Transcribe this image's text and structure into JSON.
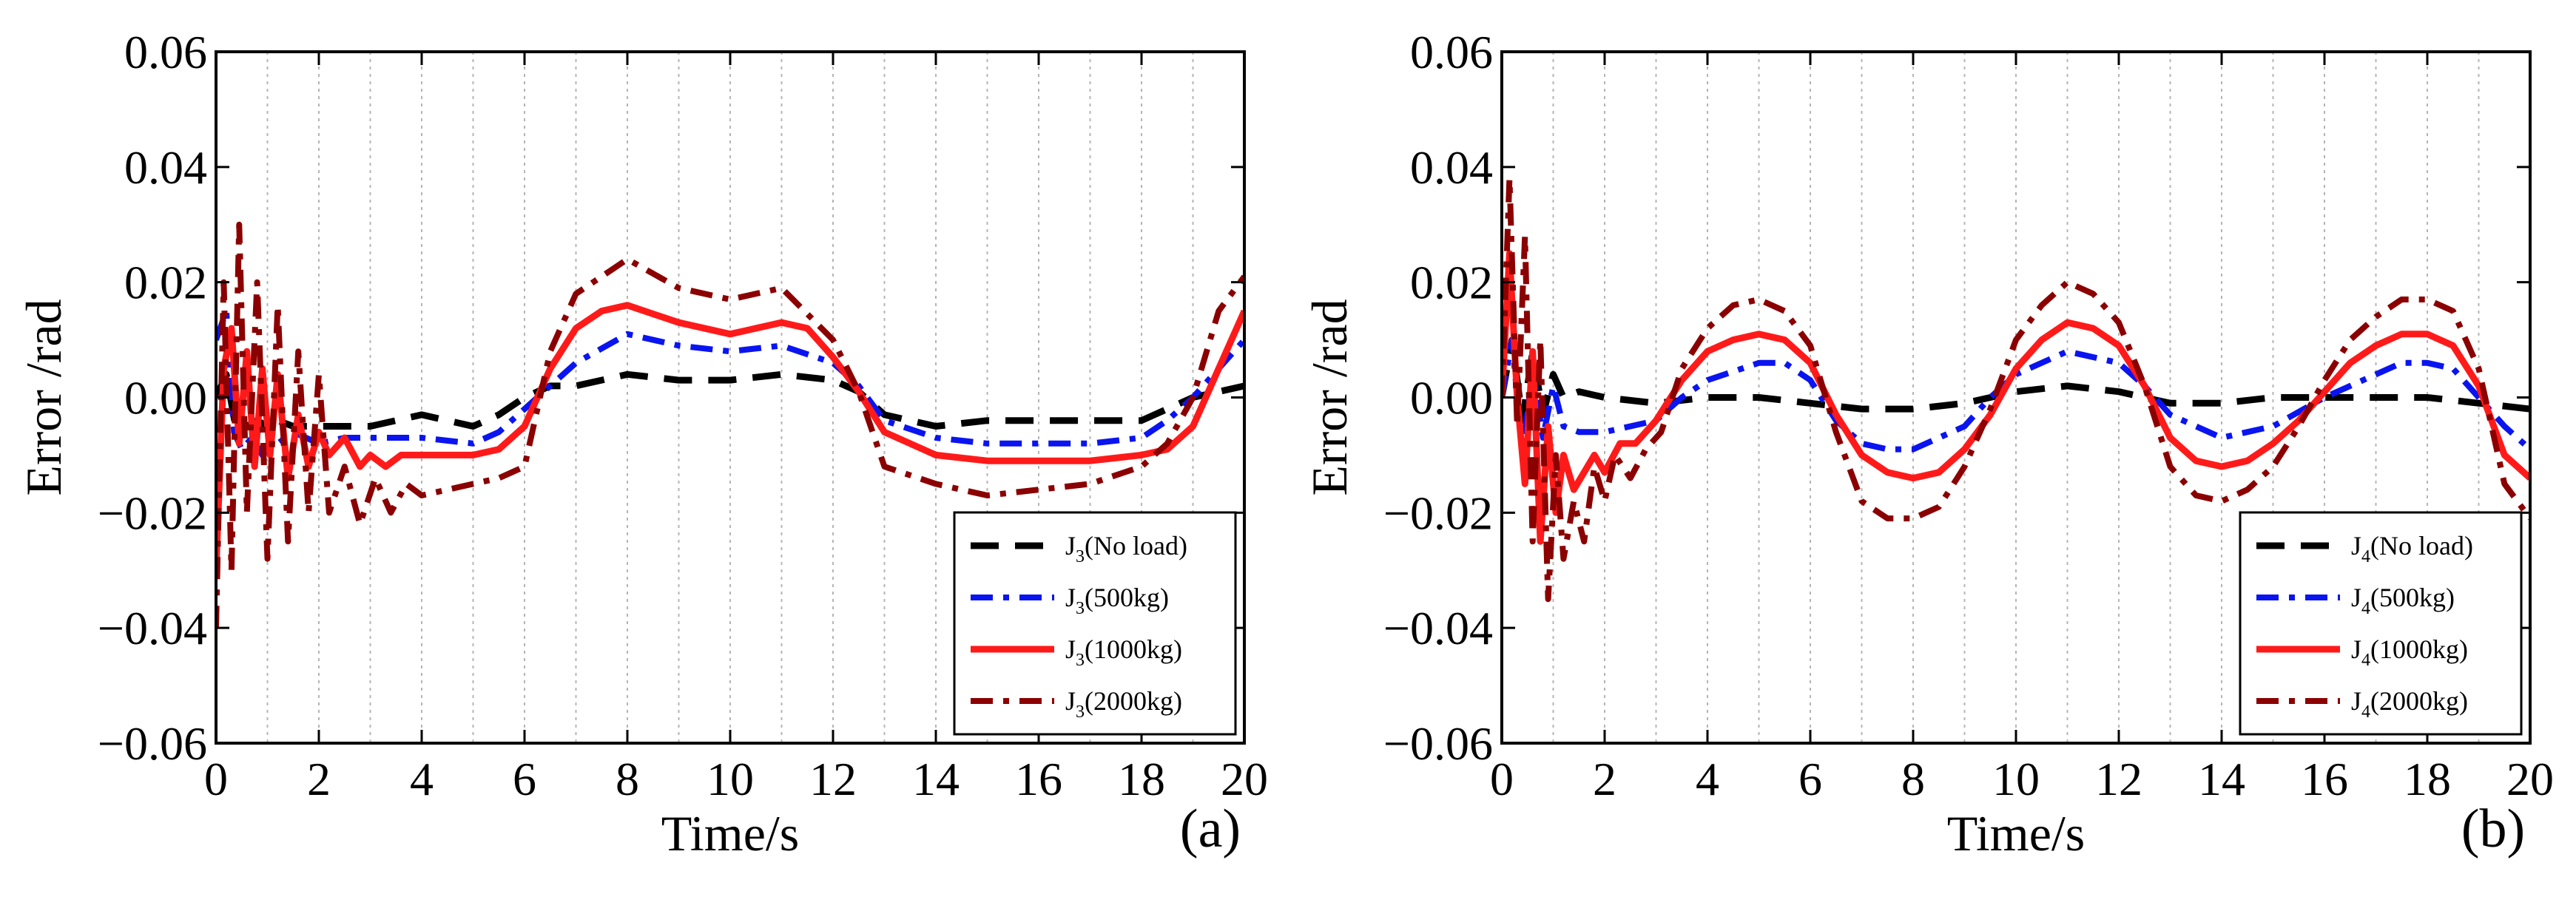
{
  "figure": {
    "colors": {
      "no_load": "#000000",
      "kg500": "#0a14f0",
      "kg1000": "#ff1a1a",
      "kg2000": "#8b0000",
      "grid": "#b4b4b4"
    }
  },
  "chart_data": [
    {
      "type": "line",
      "panel_label": "(a)",
      "xlabel": "Time/s",
      "ylabel": "Error /rad",
      "xlim": [
        0,
        20
      ],
      "ylim": [
        -0.06,
        0.06
      ],
      "xticks": [
        "0",
        "2",
        "4",
        "6",
        "8",
        "10",
        "12",
        "14",
        "16",
        "18",
        "20"
      ],
      "yticks": [
        "0.06",
        "0.04",
        "0.02",
        "0.00",
        "−0.02",
        "−0.04",
        "−0.06"
      ],
      "grid": "vertical dotted lines every 1 s",
      "legend": {
        "placement": "bottom-right"
      },
      "series": [
        {
          "name": "J3(No load)",
          "legend_main": "J",
          "legend_sub": "3",
          "legend_rest": "(No load)",
          "color": "#000000",
          "style": "dashed",
          "x": [
            0,
            0.2,
            0.4,
            0.6,
            0.8,
            1.0,
            1.2,
            1.5,
            2,
            3,
            4,
            5,
            5.5,
            6,
            6.5,
            7,
            8,
            9,
            10,
            11,
            12,
            12.5,
            13,
            14,
            15,
            16,
            17,
            18,
            18.5,
            19,
            20
          ],
          "y": [
            0,
            0.004,
            -0.006,
            -0.005,
            -0.004,
            -0.005,
            -0.004,
            -0.005,
            -0.005,
            -0.005,
            -0.003,
            -0.005,
            -0.003,
            0.0,
            0.002,
            0.002,
            0.004,
            0.003,
            0.003,
            0.004,
            0.003,
            0.001,
            -0.003,
            -0.005,
            -0.004,
            -0.004,
            -0.004,
            -0.004,
            -0.002,
            0.0,
            0.002
          ]
        },
        {
          "name": "J3(500kg)",
          "legend_main": "J",
          "legend_sub": "3",
          "legend_rest": "(500kg)",
          "color": "#0a14f0",
          "style": "dashdot",
          "x": [
            0,
            0.2,
            0.35,
            0.5,
            0.7,
            0.9,
            1.2,
            1.5,
            2,
            2.5,
            3,
            4,
            5,
            5.5,
            6,
            6.5,
            7,
            8,
            9,
            10,
            11,
            12,
            12.5,
            13,
            14,
            15,
            16,
            17,
            18,
            18.5,
            19,
            20
          ],
          "y": [
            0.01,
            0.015,
            -0.006,
            -0.009,
            -0.007,
            -0.01,
            -0.008,
            -0.006,
            -0.008,
            -0.007,
            -0.007,
            -0.007,
            -0.008,
            -0.006,
            -0.002,
            0.002,
            0.006,
            0.011,
            0.009,
            0.008,
            0.009,
            0.006,
            0.002,
            -0.004,
            -0.007,
            -0.008,
            -0.008,
            -0.008,
            -0.007,
            -0.004,
            0.0,
            0.01
          ]
        },
        {
          "name": "J3(1000kg)",
          "legend_main": "J",
          "legend_sub": "3",
          "legend_rest": "(1000kg)",
          "color": "#ff1a1a",
          "style": "solid",
          "x": [
            0,
            0.15,
            0.3,
            0.45,
            0.6,
            0.75,
            0.9,
            1.05,
            1.2,
            1.4,
            1.6,
            1.8,
            2,
            2.2,
            2.5,
            2.8,
            3,
            3.3,
            3.6,
            4,
            5,
            5.5,
            6,
            6.5,
            7,
            7.5,
            8,
            9,
            10,
            11,
            11.5,
            12,
            12.5,
            13,
            14,
            15,
            16,
            17,
            18,
            18.5,
            19,
            19.5,
            20
          ],
          "y": [
            -0.03,
            0.005,
            0.012,
            -0.008,
            0.008,
            -0.012,
            0.005,
            -0.01,
            0.004,
            -0.014,
            -0.003,
            -0.012,
            -0.006,
            -0.01,
            -0.007,
            -0.012,
            -0.01,
            -0.012,
            -0.01,
            -0.01,
            -0.01,
            -0.009,
            -0.005,
            0.005,
            0.012,
            0.015,
            0.016,
            0.013,
            0.011,
            0.013,
            0.012,
            0.007,
            0.001,
            -0.006,
            -0.01,
            -0.011,
            -0.011,
            -0.011,
            -0.01,
            -0.009,
            -0.005,
            0.005,
            0.015
          ]
        },
        {
          "name": "J3(2000kg)",
          "legend_main": "J",
          "legend_sub": "3",
          "legend_rest": "(2000kg)",
          "color": "#8b0000",
          "style": "dashdot",
          "x": [
            0,
            0.15,
            0.3,
            0.45,
            0.6,
            0.8,
            1.0,
            1.2,
            1.4,
            1.6,
            1.8,
            2.0,
            2.2,
            2.5,
            2.8,
            3.1,
            3.4,
            3.7,
            4,
            5,
            5.5,
            6,
            6.5,
            7,
            7.5,
            8,
            9,
            10,
            11,
            12,
            12.5,
            13,
            14,
            15,
            16,
            17,
            18,
            18.5,
            19,
            19.5,
            20
          ],
          "y": [
            -0.04,
            0.02,
            -0.03,
            0.03,
            -0.02,
            0.02,
            -0.028,
            0.016,
            -0.025,
            0.008,
            -0.02,
            0.004,
            -0.02,
            -0.012,
            -0.022,
            -0.014,
            -0.02,
            -0.015,
            -0.017,
            -0.015,
            -0.014,
            -0.012,
            0.008,
            0.018,
            0.021,
            0.024,
            0.019,
            0.017,
            0.019,
            0.01,
            0.001,
            -0.012,
            -0.015,
            -0.017,
            -0.016,
            -0.015,
            -0.012,
            -0.008,
            0.0,
            0.015,
            0.021
          ]
        }
      ]
    },
    {
      "type": "line",
      "panel_label": "(b)",
      "xlabel": "Time/s",
      "ylabel": "Error /rad",
      "xlim": [
        0,
        20
      ],
      "ylim": [
        -0.06,
        0.06
      ],
      "xticks": [
        "0",
        "2",
        "4",
        "6",
        "8",
        "10",
        "12",
        "14",
        "16",
        "18",
        "20"
      ],
      "yticks": [
        "0.06",
        "0.04",
        "0.02",
        "0.00",
        "−0.02",
        "−0.04",
        "−0.06"
      ],
      "grid": "vertical dotted lines every 1 s",
      "legend": {
        "placement": "bottom-right"
      },
      "series": [
        {
          "name": "J4(No load)",
          "legend_main": "J",
          "legend_sub": "4",
          "legend_rest": "(No load)",
          "color": "#000000",
          "style": "dashed",
          "x": [
            0,
            0.2,
            0.4,
            0.6,
            0.8,
            1.0,
            1.2,
            1.5,
            2,
            3,
            4,
            5,
            6,
            7,
            8,
            9,
            10,
            11,
            12,
            13,
            14,
            15,
            16,
            17,
            18,
            19,
            20
          ],
          "y": [
            0.0,
            0.01,
            -0.004,
            0.008,
            -0.003,
            0.004,
            0.0,
            0.001,
            0.0,
            -0.001,
            0.0,
            0.0,
            -0.001,
            -0.002,
            -0.002,
            -0.001,
            0.001,
            0.002,
            0.001,
            -0.001,
            -0.001,
            0.0,
            0.0,
            0.0,
            0.0,
            -0.001,
            -0.002
          ]
        },
        {
          "name": "J4(500kg)",
          "legend_main": "J",
          "legend_sub": "4",
          "legend_rest": "(500kg)",
          "color": "#0a14f0",
          "style": "dashdot",
          "x": [
            0,
            0.2,
            0.4,
            0.6,
            0.8,
            1.0,
            1.2,
            1.5,
            2,
            2.5,
            3,
            3.5,
            4,
            5,
            5.5,
            6,
            6.5,
            7,
            7.5,
            8,
            9,
            9.5,
            10,
            11,
            12,
            12.5,
            13,
            14,
            15,
            16,
            17,
            17.5,
            18,
            18.5,
            19,
            19.5,
            20
          ],
          "y": [
            0.0,
            0.01,
            -0.01,
            0.005,
            -0.007,
            0.002,
            -0.005,
            -0.006,
            -0.006,
            -0.005,
            -0.004,
            0.0,
            0.003,
            0.006,
            0.006,
            0.003,
            -0.004,
            -0.008,
            -0.009,
            -0.009,
            -0.005,
            0.0,
            0.004,
            0.008,
            0.006,
            0.002,
            -0.003,
            -0.007,
            -0.005,
            0.0,
            0.004,
            0.006,
            0.006,
            0.005,
            0.0,
            -0.005,
            -0.009
          ]
        },
        {
          "name": "J4(1000kg)",
          "legend_main": "J",
          "legend_sub": "4",
          "legend_rest": "(1000kg)",
          "color": "#ff1a1a",
          "style": "solid",
          "x": [
            0,
            0.15,
            0.3,
            0.45,
            0.6,
            0.75,
            0.9,
            1.05,
            1.2,
            1.4,
            1.6,
            1.8,
            2,
            2.3,
            2.6,
            3,
            3.5,
            4,
            4.5,
            5,
            5.5,
            6,
            6.5,
            7,
            7.5,
            8,
            8.5,
            9,
            9.5,
            10,
            10.5,
            11,
            11.5,
            12,
            12.5,
            13,
            13.5,
            14,
            14.5,
            15,
            15.5,
            16,
            16.5,
            17,
            17.5,
            18,
            18.5,
            19,
            19.5,
            20
          ],
          "y": [
            0.0,
            0.025,
            0.0,
            -0.015,
            0.008,
            -0.025,
            -0.005,
            -0.02,
            -0.01,
            -0.016,
            -0.013,
            -0.01,
            -0.013,
            -0.008,
            -0.008,
            -0.004,
            0.003,
            0.008,
            0.01,
            0.011,
            0.01,
            0.006,
            -0.003,
            -0.01,
            -0.013,
            -0.014,
            -0.013,
            -0.009,
            -0.003,
            0.005,
            0.01,
            0.013,
            0.012,
            0.009,
            0.002,
            -0.007,
            -0.011,
            -0.012,
            -0.011,
            -0.008,
            -0.004,
            0.001,
            0.006,
            0.009,
            0.011,
            0.011,
            0.009,
            0.002,
            -0.01,
            -0.014
          ]
        },
        {
          "name": "J4(2000kg)",
          "legend_main": "J",
          "legend_sub": "4",
          "legend_rest": "(2000kg)",
          "color": "#8b0000",
          "style": "dashdot",
          "x": [
            0,
            0.15,
            0.3,
            0.45,
            0.6,
            0.75,
            0.9,
            1.05,
            1.2,
            1.4,
            1.6,
            1.8,
            2.0,
            2.2,
            2.5,
            2.8,
            3.1,
            3.5,
            4,
            4.5,
            5,
            5.5,
            6,
            6.5,
            7,
            7.5,
            8,
            8.5,
            9,
            9.5,
            10,
            10.5,
            11,
            11.5,
            12,
            12.5,
            13,
            13.5,
            14,
            14.5,
            15,
            15.5,
            16,
            16.5,
            17,
            17.5,
            18,
            18.5,
            19,
            19.5,
            20
          ],
          "y": [
            0.0,
            0.038,
            -0.005,
            0.028,
            -0.025,
            0.01,
            -0.035,
            -0.01,
            -0.028,
            -0.018,
            -0.025,
            -0.012,
            -0.018,
            -0.01,
            -0.014,
            -0.009,
            -0.006,
            0.005,
            0.012,
            0.016,
            0.017,
            0.015,
            0.009,
            -0.006,
            -0.018,
            -0.021,
            -0.021,
            -0.019,
            -0.012,
            -0.002,
            0.01,
            0.016,
            0.02,
            0.018,
            0.013,
            0.002,
            -0.012,
            -0.017,
            -0.018,
            -0.016,
            -0.012,
            -0.005,
            0.003,
            0.01,
            0.014,
            0.017,
            0.017,
            0.015,
            0.005,
            -0.015,
            -0.021
          ]
        }
      ]
    }
  ]
}
